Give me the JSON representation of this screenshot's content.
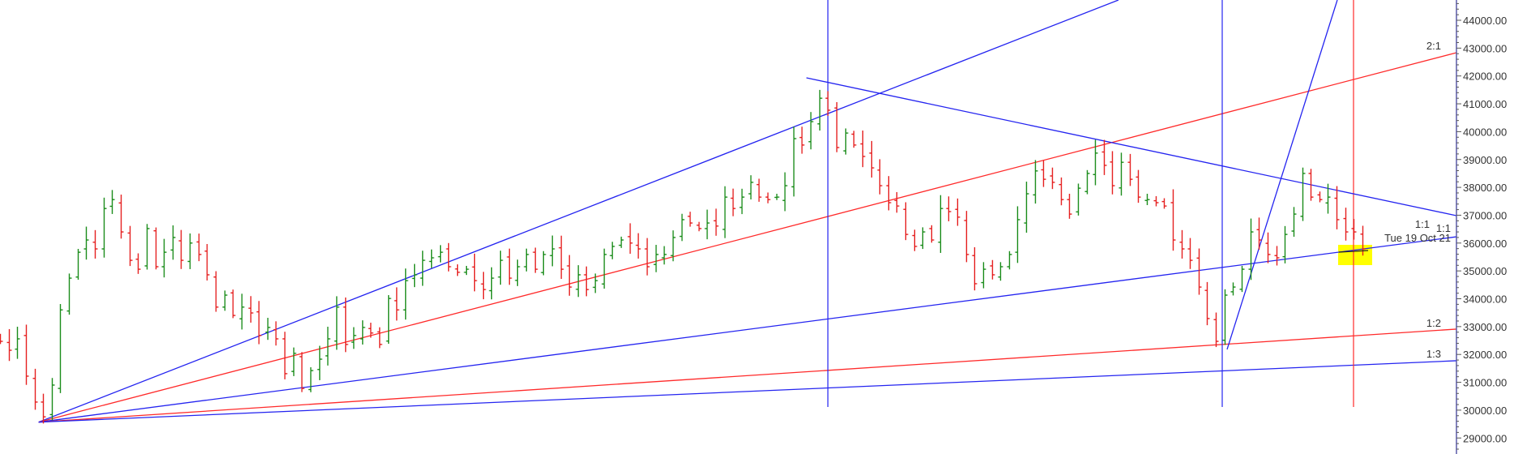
{
  "chart_data": {
    "type": "ohlc",
    "title": "",
    "xlabel": "",
    "ylabel": "",
    "ylim": [
      28500,
      45000
    ],
    "y_ticks": [
      "44000.00",
      "43000.00",
      "42000.00",
      "41000.00",
      "40000.00",
      "39000.00",
      "38000.00",
      "37000.00",
      "36000.00",
      "35000.00",
      "34000.00",
      "33000.00",
      "32000.00",
      "31000.00",
      "30000.00",
      "29000.00"
    ],
    "grid": false,
    "closes": [
      32470,
      32150,
      32560,
      31220,
      30290,
      29760,
      30900,
      33600,
      34740,
      35670,
      36110,
      35790,
      37240,
      37560,
      36400,
      35380,
      35060,
      36520,
      35150,
      35670,
      36200,
      35380,
      36000,
      35590,
      34860,
      33700,
      34130,
      33400,
      33700,
      33490,
      32680,
      32970,
      32560,
      31310,
      32040,
      30780,
      31420,
      31830,
      32560,
      33700,
      32360,
      32680,
      32970,
      32770,
      32360,
      34010,
      33600,
      34650,
      34860,
      35380,
      35470,
      35670,
      35150,
      34950,
      35060,
      34650,
      34330,
      34740,
      35380,
      34740,
      35150,
      35590,
      35060,
      35590,
      35790,
      35060,
      34420,
      34860,
      34330,
      34650,
      35590,
      35880,
      36110,
      36000,
      35790,
      35150,
      35590,
      35590,
      36200,
      36840,
      36720,
      36520,
      36720,
      36610,
      37650,
      37240,
      37650,
      38180,
      37650,
      37560,
      37650,
      38060,
      39750,
      39520,
      40360,
      41200,
      40770,
      39430,
      39950,
      39520,
      39110,
      38700,
      38060,
      37450,
      37330,
      36310,
      35880,
      36400,
      36110,
      37240,
      37130,
      36930,
      35590,
      34540,
      35060,
      34860,
      35150,
      35590,
      36840,
      37770,
      38590,
      38290,
      38180,
      37560,
      37040,
      37970,
      38500,
      39230,
      38790,
      38060,
      38900,
      38290,
      37650,
      37560,
      37450,
      37330,
      36110,
      35790,
      35380,
      34420,
      33290,
      32470,
      34130,
      34420,
      35060,
      36400,
      36110,
      35590,
      35470,
      36310,
      37040,
      38500,
      37650,
      37560,
      37650,
      36840,
      36400,
      36400,
      35790
    ],
    "up_color": "#1a8c1a",
    "down_color": "#e52020",
    "annotations": {
      "fan_labels": [
        "2:1",
        "1:1",
        "1:2",
        "1:3"
      ],
      "extra_ratio_label": "1:1",
      "date_label": "Tue 19 Oct 21"
    },
    "line_colors": {
      "blue": "#2424f0",
      "red": "#ff2a2a",
      "highlight": "#ffff00",
      "axis": "#5a5aa8"
    }
  }
}
